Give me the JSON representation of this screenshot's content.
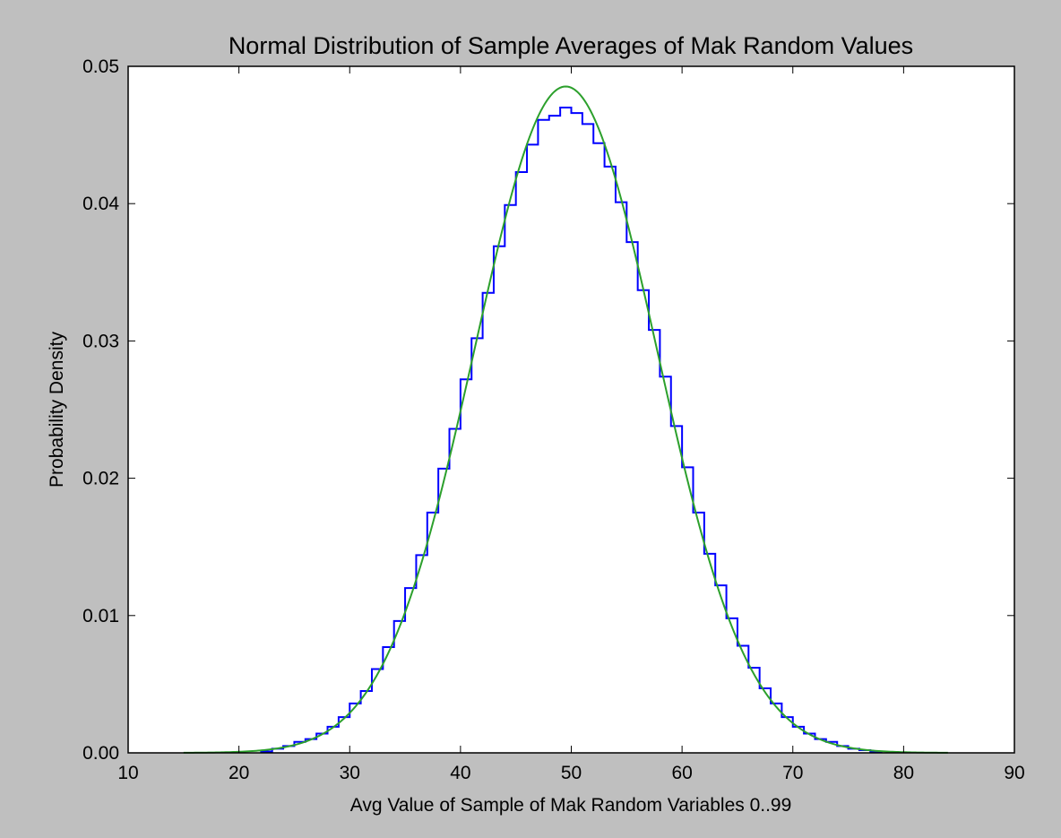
{
  "chart_data": {
    "type": "line",
    "title": "Normal Distribution of Sample Averages of Mak Random Values",
    "xlabel": "Avg Value of Sample of Mak Random Variables 0..99",
    "ylabel": "Probability Density",
    "xlim": [
      10,
      90
    ],
    "ylim": [
      0,
      0.05
    ],
    "x_ticks": [
      10,
      20,
      30,
      40,
      50,
      60,
      70,
      80,
      90
    ],
    "y_ticks": [
      0.0,
      0.01,
      0.02,
      0.03,
      0.04,
      0.05
    ],
    "x_tick_labels": [
      "10",
      "20",
      "30",
      "40",
      "50",
      "60",
      "70",
      "80",
      "90"
    ],
    "y_tick_labels": [
      "0.00",
      "0.01",
      "0.02",
      "0.03",
      "0.04",
      "0.05"
    ],
    "grid": false,
    "legend": "none",
    "series": [
      {
        "kind": "step-histogram",
        "color": "#0000ff",
        "bin_edges": [
          22,
          23,
          24,
          25,
          26,
          27,
          28,
          29,
          30,
          31,
          32,
          33,
          34,
          35,
          36,
          37,
          38,
          39,
          40,
          41,
          42,
          43,
          44,
          45,
          46,
          47,
          48,
          49,
          50,
          51,
          52,
          53,
          54,
          55,
          56,
          57,
          58,
          59,
          60,
          61,
          62,
          63,
          64,
          65,
          66,
          67,
          68,
          69,
          70,
          71,
          72,
          73,
          74,
          75,
          76,
          77,
          78
        ],
        "values": [
          0.0001,
          0.0003,
          0.0005,
          0.0008,
          0.001,
          0.0014,
          0.0019,
          0.0026,
          0.0036,
          0.0045,
          0.0061,
          0.0077,
          0.0096,
          0.012,
          0.0144,
          0.0175,
          0.0207,
          0.0236,
          0.0272,
          0.0302,
          0.0335,
          0.0369,
          0.0399,
          0.0423,
          0.0443,
          0.0461,
          0.0464,
          0.047,
          0.0466,
          0.0458,
          0.0444,
          0.0427,
          0.0401,
          0.0372,
          0.0337,
          0.0308,
          0.0274,
          0.0238,
          0.0208,
          0.0175,
          0.0145,
          0.0122,
          0.0098,
          0.0078,
          0.0062,
          0.0047,
          0.0036,
          0.0026,
          0.0019,
          0.0014,
          0.001,
          0.0008,
          0.0005,
          0.0003,
          0.0002,
          0.0001
        ]
      },
      {
        "kind": "normal-pdf",
        "color": "#2ca02c",
        "mean": 49.5,
        "std": 8.22,
        "x_range": [
          15,
          84
        ]
      }
    ]
  }
}
